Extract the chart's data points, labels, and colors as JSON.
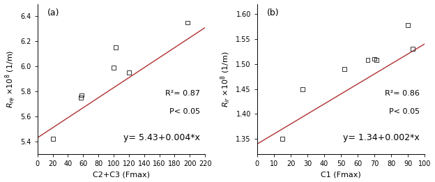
{
  "panel_a": {
    "label": "(a)",
    "x_data": [
      20,
      57,
      58,
      100,
      103,
      120,
      197
    ],
    "y_data": [
      5.42,
      5.75,
      5.77,
      5.99,
      6.15,
      5.95,
      6.35
    ],
    "xlabel": "C2+C3 (Fmax)",
    "ylabel_top": "R",
    "ylabel_sub": "re",
    "ylabel_bot": " ×10⁸ (1/m)",
    "ylim": [
      5.3,
      6.5
    ],
    "xlim": [
      0,
      220
    ],
    "xticks": [
      0,
      20,
      40,
      60,
      80,
      100,
      120,
      140,
      160,
      180,
      200,
      220
    ],
    "yticks": [
      5.4,
      5.6,
      5.8,
      6.0,
      6.2,
      6.4
    ],
    "fit_intercept": 5.43,
    "fit_slope": 0.004,
    "r2_text": "R²= 0.87",
    "p_text": "P< 0.05",
    "eq_text": "y= 5.43+0.004*x",
    "line_x": [
      0,
      220
    ]
  },
  "panel_b": {
    "label": "(b)",
    "x_data": [
      15,
      27,
      52,
      66,
      70,
      71,
      90,
      93
    ],
    "y_data": [
      1.35,
      1.449,
      1.49,
      1.508,
      1.51,
      1.508,
      1.578,
      1.53
    ],
    "xlabel": "C1 (Fmax)",
    "ylabel_top": "R",
    "ylabel_sub": "ir",
    "ylabel_bot": " ×10⁸ (1/m)",
    "ylim": [
      1.32,
      1.62
    ],
    "xlim": [
      0,
      100
    ],
    "xticks": [
      0,
      10,
      20,
      30,
      40,
      50,
      60,
      70,
      80,
      90,
      100
    ],
    "yticks": [
      1.35,
      1.4,
      1.45,
      1.5,
      1.55,
      1.6
    ],
    "fit_intercept": 1.34,
    "fit_slope": 0.002,
    "r2_text": "R²= 0.86",
    "p_text": "P< 0.05",
    "eq_text": "y= 1.34+0.002*x",
    "line_x": [
      0,
      100
    ]
  },
  "line_color": "#b03030",
  "marker_facecolor": "none",
  "marker_edge_color": "#333333",
  "background_color": "#ffffff",
  "ann_fontsize_small": 8,
  "ann_fontsize_eq": 9,
  "label_fontsize": 8,
  "tick_fontsize": 7,
  "panel_label_fontsize": 9
}
